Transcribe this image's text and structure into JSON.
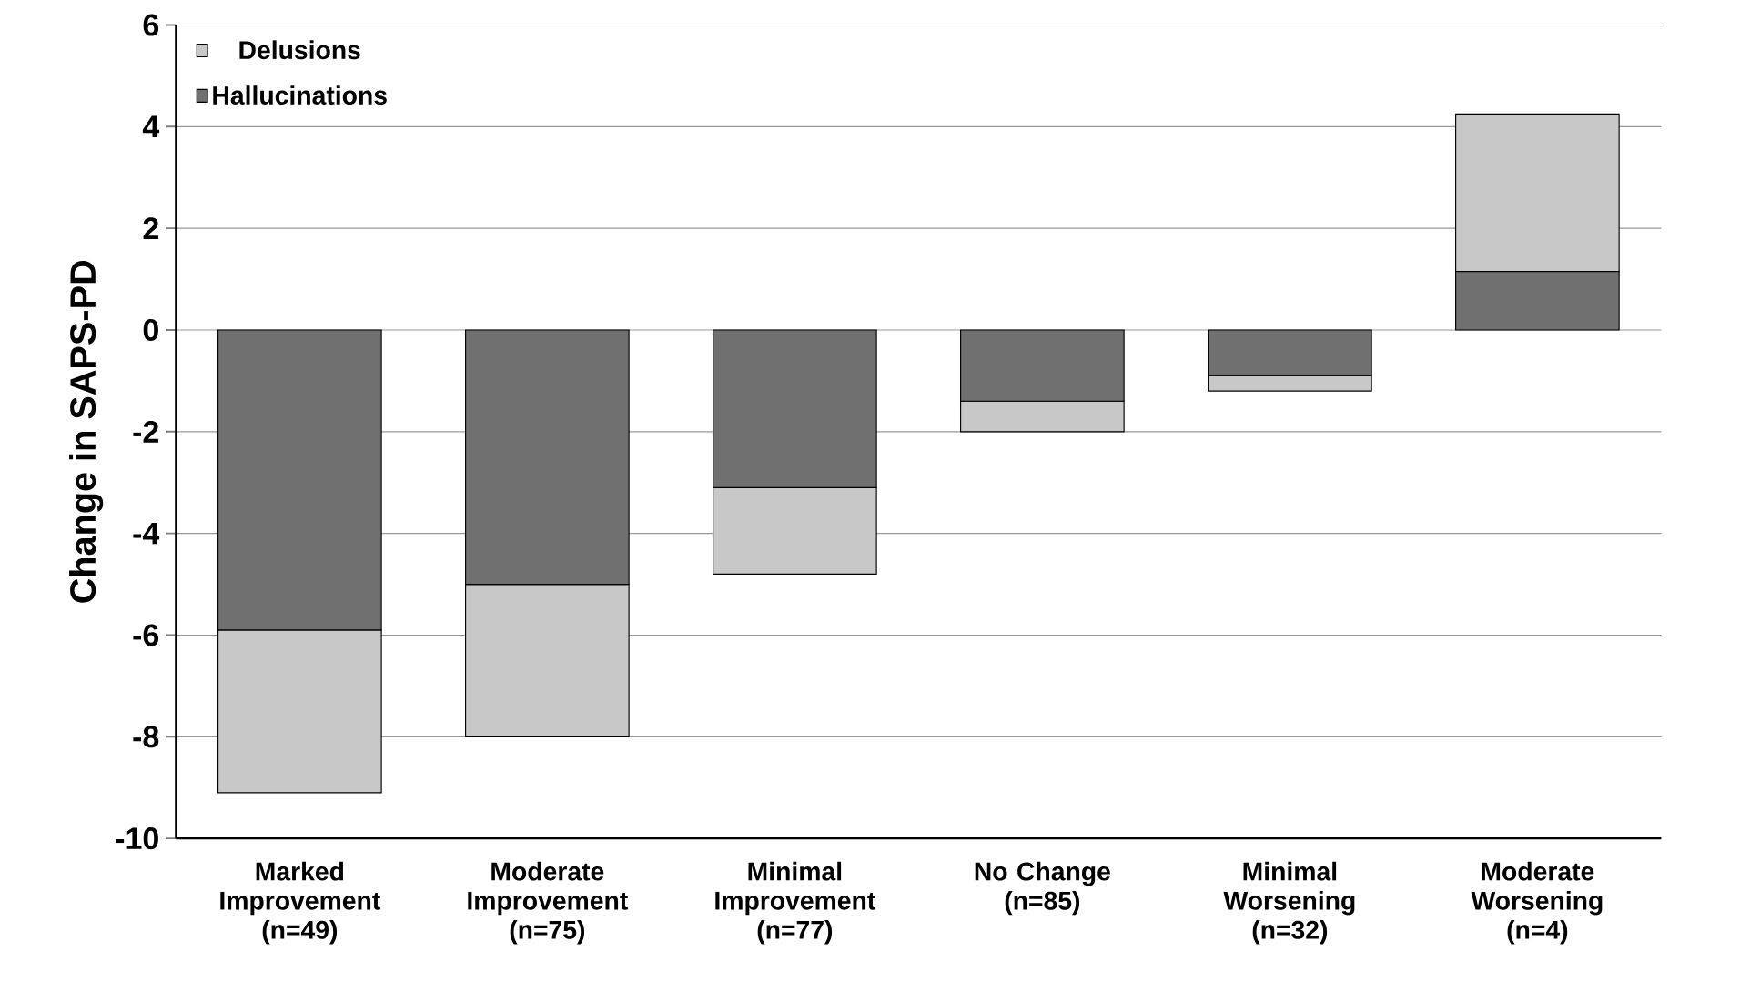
{
  "chart_data": {
    "type": "bar",
    "stacked": true,
    "ylabel": "Change in SAPS-PD",
    "categories": [
      "Marked Improvement (n=49)",
      "Moderate Improvement (n=75)",
      "Minimal Improvement (n=77)",
      "No Change (n=85)",
      "Minimal Worsening (n=32)",
      "Moderate Worsening (n=4)"
    ],
    "series": [
      {
        "name": "Hallucinations",
        "color": "#707070",
        "values": [
          -5.9,
          -5.0,
          -3.1,
          -1.4,
          -0.9,
          1.15
        ]
      },
      {
        "name": "Delusions",
        "color": "#c8c8c8",
        "values": [
          -3.2,
          -3.0,
          -1.7,
          -0.6,
          -0.3,
          3.1
        ]
      }
    ],
    "ylim": [
      -10,
      6
    ],
    "yticks": [
      -10,
      -8,
      -6,
      -4,
      -2,
      0,
      2,
      4,
      6
    ],
    "grid": "y",
    "legend": "top left"
  }
}
